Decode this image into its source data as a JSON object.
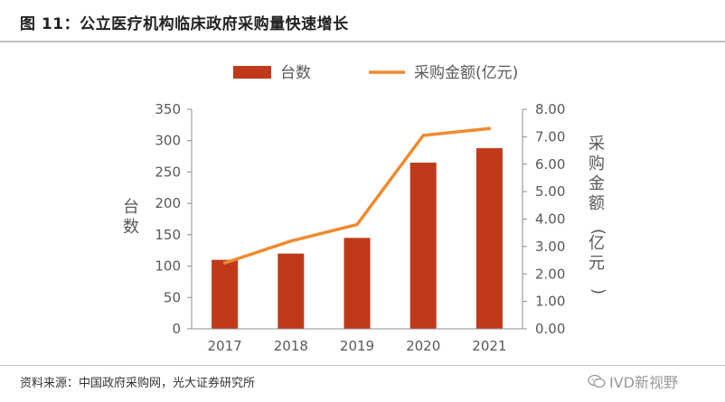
{
  "figure_title": "图 11：公立医疗机构临床政府采购量快速增长",
  "source_text": "资料来源：中国政府采购网，光大证券研究所",
  "watermark_text": "IVD新视野",
  "watermark_icon": "wechat-icon",
  "colors": {
    "bar": "#C0391B",
    "line": "#F08A2E",
    "axis": "#8c8c8c",
    "rule": "#bfbfbf"
  },
  "chart_data": {
    "type": "bar+line",
    "categories": [
      "2017",
      "2018",
      "2019",
      "2020",
      "2021"
    ],
    "series": [
      {
        "name": "台数",
        "type": "bar",
        "axis": "left",
        "values": [
          110,
          120,
          145,
          265,
          288
        ]
      },
      {
        "name": "采购金额(亿元)",
        "type": "line",
        "axis": "right",
        "values": [
          2.4,
          3.2,
          3.8,
          7.05,
          7.3
        ]
      }
    ],
    "y_left": {
      "label": "台数",
      "ylim": [
        0,
        350
      ],
      "ticks": [
        "0",
        "50",
        "100",
        "150",
        "200",
        "250",
        "300",
        "350"
      ]
    },
    "y_right": {
      "label": "采购金额(亿元)",
      "ylim": [
        0,
        8
      ],
      "ticks": [
        "0.00",
        "1.00",
        "2.00",
        "3.00",
        "4.00",
        "5.00",
        "6.00",
        "7.00",
        "8.00"
      ]
    },
    "grid": false,
    "legend_position": "top-center"
  }
}
